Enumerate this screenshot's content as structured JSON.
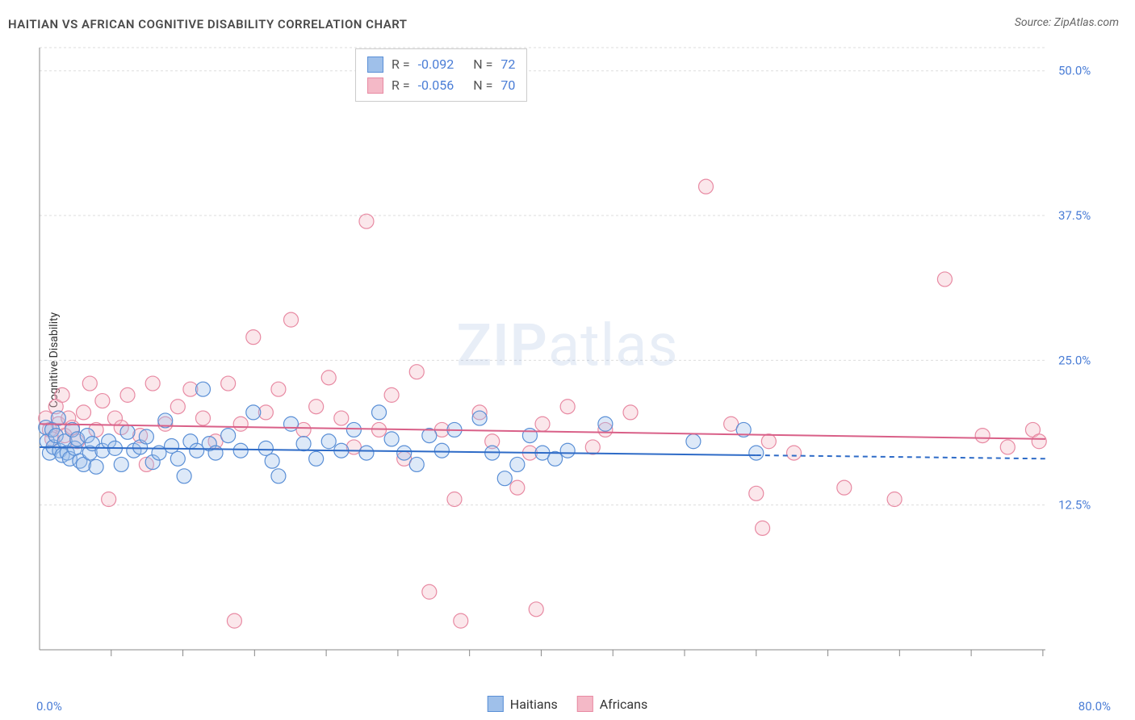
{
  "chart": {
    "type": "scatter",
    "title": "HAITIAN VS AFRICAN COGNITIVE DISABILITY CORRELATION CHART",
    "source_label": "Source: ZipAtlas.com",
    "ylabel": "Cognitive Disability",
    "watermark_zip": "ZIP",
    "watermark_atlas": "atlas",
    "background_color": "#ffffff",
    "grid_color": "#dddddd",
    "axis_color": "#888888",
    "tick_label_color": "#4a7dd6",
    "xlim": [
      0,
      80
    ],
    "ylim": [
      0,
      52
    ],
    "x_corner_labels": [
      "0.0%",
      "80.0%"
    ],
    "y_ticks": [
      {
        "v": 12.5,
        "label": "12.5%"
      },
      {
        "v": 25.0,
        "label": "25.0%"
      },
      {
        "v": 37.5,
        "label": "37.5%"
      },
      {
        "v": 50.0,
        "label": "50.0%"
      }
    ],
    "x_tick_marks": [
      5.7,
      11.4,
      17.1,
      22.8,
      28.5,
      34.2,
      39.9,
      45.6,
      51.3,
      57.0,
      62.7,
      68.4,
      74.1,
      79.8
    ],
    "marker_radius": 9,
    "marker_stroke_width": 1.2,
    "marker_fill_opacity": 0.35,
    "series": [
      {
        "key": "haitians",
        "label": "Haitians",
        "fill": "#9fc0ea",
        "stroke": "#5a8fd6",
        "R_label": "R =",
        "R": "-0.092",
        "N_label": "N =",
        "N": "72",
        "regression": {
          "x1": 0,
          "y1": 17.5,
          "x2": 57,
          "y2": 16.8,
          "ext_x": 80,
          "ext_y": 16.5,
          "color": "#2e6bc7",
          "width": 2
        },
        "points": [
          [
            0.5,
            19.2
          ],
          [
            0.6,
            18.0
          ],
          [
            0.8,
            17.0
          ],
          [
            1.0,
            19.0
          ],
          [
            1.1,
            17.5
          ],
          [
            1.3,
            18.5
          ],
          [
            1.5,
            20.0
          ],
          [
            1.6,
            17.2
          ],
          [
            1.8,
            16.8
          ],
          [
            2.0,
            18.0
          ],
          [
            2.2,
            17.0
          ],
          [
            2.4,
            16.5
          ],
          [
            2.6,
            19.0
          ],
          [
            2.8,
            17.4
          ],
          [
            3.0,
            18.2
          ],
          [
            3.2,
            16.3
          ],
          [
            3.5,
            16.0
          ],
          [
            3.8,
            18.5
          ],
          [
            4.0,
            17.0
          ],
          [
            4.2,
            17.8
          ],
          [
            4.5,
            15.8
          ],
          [
            5.0,
            17.2
          ],
          [
            5.5,
            18.0
          ],
          [
            6.0,
            17.4
          ],
          [
            6.5,
            16.0
          ],
          [
            7.0,
            18.8
          ],
          [
            7.5,
            17.2
          ],
          [
            8.0,
            17.5
          ],
          [
            8.5,
            18.4
          ],
          [
            9.0,
            16.2
          ],
          [
            9.5,
            17.0
          ],
          [
            10.0,
            19.8
          ],
          [
            10.5,
            17.6
          ],
          [
            11.0,
            16.5
          ],
          [
            11.5,
            15.0
          ],
          [
            12.0,
            18.0
          ],
          [
            12.5,
            17.2
          ],
          [
            13.0,
            22.5
          ],
          [
            13.5,
            17.8
          ],
          [
            14.0,
            17.0
          ],
          [
            15.0,
            18.5
          ],
          [
            16.0,
            17.2
          ],
          [
            17.0,
            20.5
          ],
          [
            18.0,
            17.4
          ],
          [
            18.5,
            16.3
          ],
          [
            19.0,
            15.0
          ],
          [
            20.0,
            19.5
          ],
          [
            21.0,
            17.8
          ],
          [
            22.0,
            16.5
          ],
          [
            23.0,
            18.0
          ],
          [
            24.0,
            17.2
          ],
          [
            25.0,
            19.0
          ],
          [
            26.0,
            17.0
          ],
          [
            27.0,
            20.5
          ],
          [
            28.0,
            18.2
          ],
          [
            29.0,
            17.0
          ],
          [
            30.0,
            16.0
          ],
          [
            31.0,
            18.5
          ],
          [
            32.0,
            17.2
          ],
          [
            33.0,
            19.0
          ],
          [
            35.0,
            20.0
          ],
          [
            36.0,
            17.0
          ],
          [
            37.0,
            14.8
          ],
          [
            38.0,
            16.0
          ],
          [
            39.0,
            18.5
          ],
          [
            40.0,
            17.0
          ],
          [
            41.0,
            16.5
          ],
          [
            42.0,
            17.2
          ],
          [
            45.0,
            19.5
          ],
          [
            52.0,
            18.0
          ],
          [
            56.0,
            19.0
          ],
          [
            57.0,
            17.0
          ]
        ]
      },
      {
        "key": "africans",
        "label": "Africans",
        "fill": "#f4b9c7",
        "stroke": "#e88aa3",
        "R_label": "R =",
        "R": "-0.056",
        "N_label": "N =",
        "N": "70",
        "regression": {
          "x1": 0,
          "y1": 19.5,
          "x2": 80,
          "y2": 18.2,
          "color": "#d96088",
          "width": 2
        },
        "points": [
          [
            0.5,
            20.0
          ],
          [
            0.8,
            19.0
          ],
          [
            1.0,
            18.2
          ],
          [
            1.3,
            21.0
          ],
          [
            1.5,
            19.5
          ],
          [
            1.8,
            22.0
          ],
          [
            2.0,
            18.5
          ],
          [
            2.3,
            20.0
          ],
          [
            2.6,
            19.2
          ],
          [
            3.0,
            18.0
          ],
          [
            3.5,
            20.5
          ],
          [
            4.0,
            23.0
          ],
          [
            4.5,
            19.0
          ],
          [
            5.0,
            21.5
          ],
          [
            5.5,
            13.0
          ],
          [
            6.0,
            20.0
          ],
          [
            6.5,
            19.2
          ],
          [
            7.0,
            22.0
          ],
          [
            8.0,
            18.5
          ],
          [
            8.5,
            16.0
          ],
          [
            9.0,
            23.0
          ],
          [
            10.0,
            19.5
          ],
          [
            11.0,
            21.0
          ],
          [
            12.0,
            22.5
          ],
          [
            13.0,
            20.0
          ],
          [
            14.0,
            18.0
          ],
          [
            15.0,
            23.0
          ],
          [
            15.5,
            2.5
          ],
          [
            16.0,
            19.5
          ],
          [
            17.0,
            27.0
          ],
          [
            18.0,
            20.5
          ],
          [
            19.0,
            22.5
          ],
          [
            20.0,
            28.5
          ],
          [
            21.0,
            19.0
          ],
          [
            22.0,
            21.0
          ],
          [
            23.0,
            23.5
          ],
          [
            24.0,
            20.0
          ],
          [
            25.0,
            17.5
          ],
          [
            26.0,
            37.0
          ],
          [
            27.0,
            19.0
          ],
          [
            28.0,
            22.0
          ],
          [
            29.0,
            16.5
          ],
          [
            30.0,
            24.0
          ],
          [
            31.0,
            5.0
          ],
          [
            32.0,
            19.0
          ],
          [
            33.0,
            13.0
          ],
          [
            33.5,
            2.5
          ],
          [
            35.0,
            20.5
          ],
          [
            36.0,
            18.0
          ],
          [
            38.0,
            14.0
          ],
          [
            39.0,
            17.0
          ],
          [
            39.5,
            3.5
          ],
          [
            40.0,
            19.5
          ],
          [
            42.0,
            21.0
          ],
          [
            44.0,
            17.5
          ],
          [
            45.0,
            19.0
          ],
          [
            47.0,
            20.5
          ],
          [
            53.0,
            40.0
          ],
          [
            55.0,
            19.5
          ],
          [
            57.0,
            13.5
          ],
          [
            57.5,
            10.5
          ],
          [
            58.0,
            18.0
          ],
          [
            60.0,
            17.0
          ],
          [
            64.0,
            14.0
          ],
          [
            68.0,
            13.0
          ],
          [
            72.0,
            32.0
          ],
          [
            75.0,
            18.5
          ],
          [
            77.0,
            17.5
          ],
          [
            79.0,
            19.0
          ],
          [
            79.5,
            18.0
          ]
        ]
      }
    ]
  }
}
